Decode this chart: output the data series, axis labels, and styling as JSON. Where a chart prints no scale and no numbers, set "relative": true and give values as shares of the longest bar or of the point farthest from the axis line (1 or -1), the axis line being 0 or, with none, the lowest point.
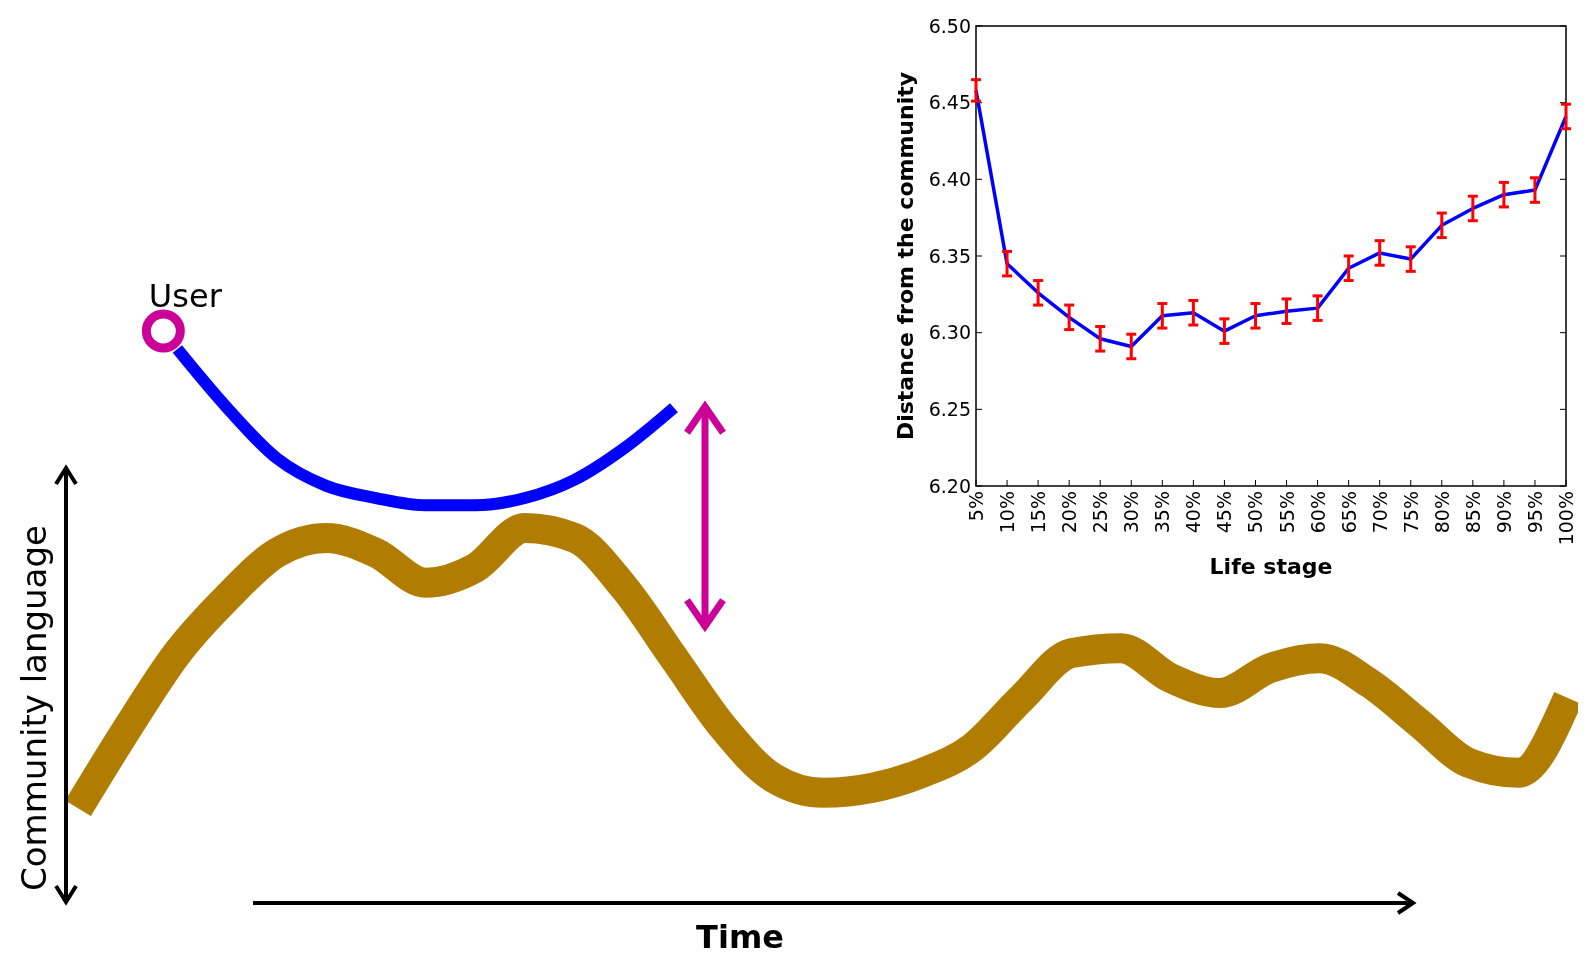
{
  "chart_data": [
    {
      "type": "line",
      "relative": true,
      "xlabel": "Time",
      "ylabel": "Community language",
      "annotations": [
        "User"
      ],
      "categories": [
        null,
        null,
        null,
        null,
        null,
        null,
        null,
        null,
        null,
        null,
        null,
        null,
        null,
        null,
        null,
        null,
        null,
        null,
        null,
        null,
        null,
        null,
        null,
        null,
        null,
        null,
        null,
        null,
        null,
        null,
        null
      ],
      "series": [
        {
          "color": "#b07d00",
          "values": [
            0.171,
            0.316,
            0.451,
            0.551,
            0.632,
            0.659,
            0.632,
            0.578,
            0.605,
            0.677,
            0.659,
            0.569,
            0.442,
            0.316,
            0.226,
            0.199,
            0.208,
            0.235,
            0.28,
            0.37,
            0.451,
            0.46,
            0.406,
            0.379,
            0.424,
            0.442,
            0.397,
            0.325,
            0.253,
            0.235,
            0.37
          ]
        },
        {
          "color": "#0000ff",
          "values": [
            null,
            null,
            1,
            0.894,
            0.803,
            0.753,
            0.731,
            0.718,
            0.718,
            0.731,
            0.764,
            0.821,
            0.894,
            null,
            null,
            null,
            null,
            null,
            null,
            null,
            null,
            null,
            null,
            null,
            null,
            null,
            null,
            null,
            null,
            null,
            null
          ]
        }
      ]
    },
    {
      "type": "line",
      "xlabel": "Life stage",
      "ylabel": "Distance from the community",
      "color": "#0000ff",
      "categories": [
        "5%",
        "10%",
        "15%",
        "20%",
        "25%",
        "30%",
        "35%",
        "40%",
        "45%",
        "50%",
        "55%",
        "60%",
        "65%",
        "70%",
        "75%",
        "80%",
        "85%",
        "90%",
        "95%",
        "100%"
      ],
      "values": [
        6.458,
        6.345,
        6.326,
        6.31,
        6.296,
        6.291,
        6.311,
        6.313,
        6.301,
        6.311,
        6.314,
        6.316,
        6.342,
        6.352,
        6.348,
        6.37,
        6.381,
        6.39,
        6.393,
        6.441
      ],
      "errors": [
        0.007,
        0.008,
        0.008,
        0.008,
        0.008,
        0.008,
        0.008,
        0.008,
        0.008,
        0.008,
        0.008,
        0.008,
        0.008,
        0.008,
        0.008,
        0.008,
        0.008,
        0.008,
        0.008,
        0.008
      ],
      "ylim": [
        6.2,
        6.5
      ],
      "yticks": [
        {
          "value": 6.2,
          "label": "6.20"
        },
        {
          "value": 6.25,
          "label": "6.25"
        },
        {
          "value": 6.3,
          "label": "6.30"
        },
        {
          "value": 6.35,
          "label": "6.35"
        },
        {
          "value": 6.4,
          "label": "6.40"
        },
        {
          "value": 6.45,
          "label": "6.45"
        },
        {
          "value": 6.5,
          "label": "6.50"
        }
      ]
    }
  ]
}
